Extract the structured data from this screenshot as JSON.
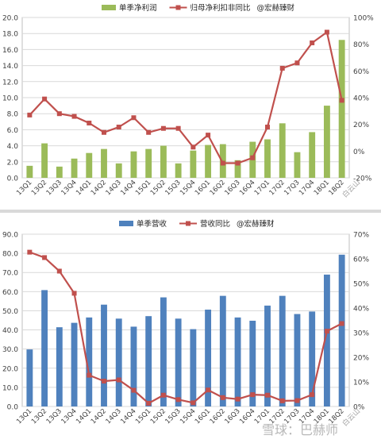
{
  "chart_data": [
    {
      "type": "bar+line",
      "categories": [
        "13Q1",
        "13Q2",
        "13Q3",
        "13Q4",
        "14Q1",
        "14Q2",
        "14Q3",
        "14Q4",
        "15Q1",
        "15Q2",
        "15Q3",
        "15Q4",
        "16Q1",
        "16Q2",
        "16Q3",
        "16Q4",
        "17Q1",
        "17Q2",
        "17Q3",
        "17Q4",
        "18Q1",
        "18Q2"
      ],
      "series": [
        {
          "name": "单季净利润",
          "kind": "bar",
          "axis": "left",
          "color": "#9bbb59",
          "values": [
            1.5,
            4.3,
            1.4,
            2.4,
            3.1,
            3.6,
            1.8,
            3.3,
            3.6,
            4.0,
            1.8,
            3.4,
            4.1,
            4.2,
            2.2,
            4.5,
            4.8,
            6.8,
            3.2,
            5.7,
            9.0,
            17.2
          ]
        },
        {
          "name": "归母净利扣非同比",
          "kind": "line",
          "axis": "right",
          "color": "#c0504d",
          "values": [
            27,
            39,
            28,
            26,
            21,
            14,
            18,
            25,
            14,
            17,
            17,
            3,
            12,
            -9,
            -9,
            -5,
            18,
            62,
            66,
            81,
            89,
            38
          ]
        }
      ],
      "legend_extra": "@宏赫臻财",
      "ylim": [
        0,
        20
      ],
      "yticks": [
        "0.0",
        "2.0",
        "4.0",
        "6.0",
        "8.0",
        "10.0",
        "12.0",
        "14.0",
        "16.0",
        "18.0",
        "20.0"
      ],
      "y2lim": [
        -20,
        100
      ],
      "y2ticks": [
        "-20%",
        "0%",
        "20%",
        "40%",
        "60%",
        "80%",
        "100%"
      ],
      "watermark": "白云山",
      "legend_position": "top-center",
      "grid": true
    },
    {
      "type": "bar+line",
      "categories": [
        "13Q1",
        "13Q2",
        "13Q3",
        "13Q4",
        "14Q1",
        "14Q2",
        "14Q3",
        "14Q4",
        "15Q1",
        "15Q2",
        "15Q3",
        "15Q4",
        "16Q1",
        "16Q2",
        "16Q3",
        "16Q4",
        "17Q1",
        "17Q2",
        "17Q3",
        "17Q4",
        "18Q1",
        "18Q2"
      ],
      "series": [
        {
          "name": "单季营收",
          "kind": "bar",
          "axis": "left",
          "color": "#4f81bd",
          "values": [
            29.8,
            60.8,
            41.4,
            43.7,
            46.5,
            53.2,
            45.9,
            41.7,
            47.2,
            57.0,
            45.9,
            40.4,
            50.6,
            57.8,
            46.5,
            44.8,
            52.7,
            57.8,
            48.3,
            49.6,
            68.9,
            79.3
          ]
        },
        {
          "name": "营收同比",
          "kind": "line",
          "axis": "right",
          "color": "#c0504d",
          "values": [
            62.7,
            60.5,
            55.0,
            46.0,
            12.7,
            10.3,
            10.8,
            6.6,
            1.3,
            4.6,
            2.8,
            1.5,
            6.7,
            3.6,
            3.0,
            4.8,
            4.6,
            2.3,
            2.4,
            4.8,
            30.6,
            33.7
          ]
        }
      ],
      "legend_extra": "@宏赫臻财",
      "ylim": [
        0,
        90
      ],
      "yticks": [
        "0.0",
        "10.0",
        "20.0",
        "30.0",
        "40.0",
        "50.0",
        "60.0",
        "70.0",
        "80.0",
        "90.0"
      ],
      "y2lim": [
        0,
        70
      ],
      "y2ticks": [
        "0%",
        "10%",
        "20%",
        "30%",
        "40%",
        "50%",
        "60%",
        "70%"
      ],
      "watermark": "白云山",
      "legend_position": "top-center",
      "grid": true
    }
  ],
  "page_watermark": "雪球：巴赫师"
}
